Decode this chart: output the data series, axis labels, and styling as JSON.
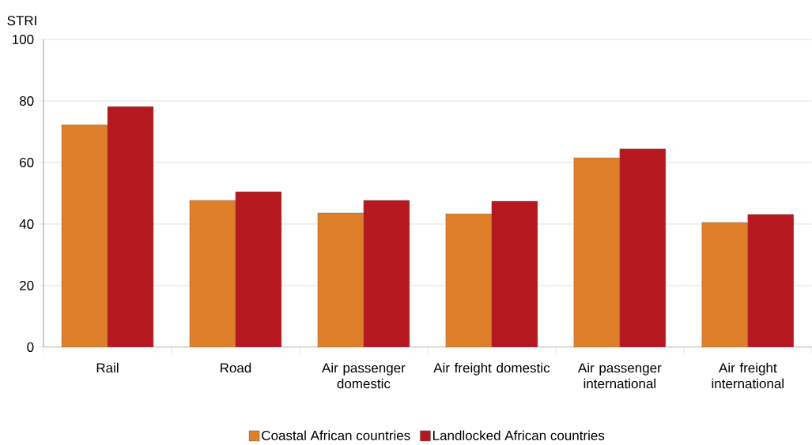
{
  "chart_data": {
    "type": "bar",
    "ylabel": "STRI",
    "categories": [
      "Rail",
      "Road",
      "Air passenger domestic",
      "Air freight domestic",
      "Air passenger international",
      "Air freight international"
    ],
    "series": [
      {
        "name": "Coastal African countries",
        "color": "#e07f2a",
        "values": [
          72.3,
          47.7,
          43.6,
          43.3,
          61.5,
          40.5
        ]
      },
      {
        "name": "Landlocked African countries",
        "color": "#b5191f",
        "values": [
          78.2,
          50.5,
          47.7,
          47.4,
          64.4,
          43.1
        ]
      }
    ],
    "ylim": [
      0,
      100
    ],
    "yticks": [
      0,
      20,
      40,
      60,
      80,
      100
    ],
    "grid": "y",
    "legend": "bottom"
  }
}
